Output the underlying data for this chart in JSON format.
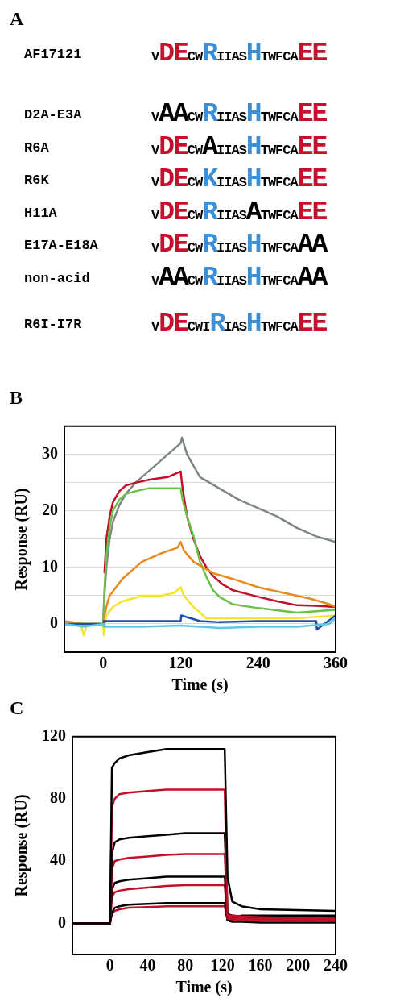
{
  "chart_data": [
    {
      "type": "other",
      "title": "A",
      "annotations": [
        "AF17121",
        "vDEcwRiiasHtwfcaEE",
        "D2A-E3A",
        "vAAcwRiiasHtwfcaEE",
        "R6A",
        "vDEcwAiiasHtwfcaEE",
        "R6K",
        "vDEcwKiiasHtwfcaEE",
        "H11A",
        "vDEcwRiiasAtwfcaEE",
        "E17A-E18A",
        "vDEcwRiiasHtwfcaAA",
        "non-acid",
        "vAAcwRiiasHtwfcaAA",
        "R6I-I7R",
        "vDEcwiRiasHtwfcaEE"
      ]
    },
    {
      "type": "line",
      "title": "B",
      "xlabel": "Time (s)",
      "ylabel": "Response (RU)",
      "xlim": [
        -60,
        360
      ],
      "xticks": [
        0,
        120,
        240,
        360
      ],
      "ylim": [
        -5,
        35
      ],
      "yticks": [
        {
          "value": -5,
          "label": null
        },
        0,
        {
          "value": 5,
          "label": null
        },
        10,
        {
          "value": 15,
          "label": null
        },
        20,
        {
          "value": 25,
          "label": null
        },
        30
      ],
      "grid": "y",
      "series": [
        {
          "color": "#5cc8e8",
          "x": [
            -60,
            -30,
            0,
            1,
            60,
            120,
            180,
            240,
            300,
            350,
            360
          ],
          "values": [
            0,
            -0.5,
            0,
            -0.5,
            -0.5,
            -0.3,
            -0.7,
            -0.5,
            -0.5,
            0,
            1
          ]
        },
        {
          "color": "#1f4fa8",
          "x": [
            -60,
            -30,
            0,
            1,
            30,
            60,
            90,
            120,
            121,
            150,
            180,
            240,
            300,
            330,
            331,
            360
          ],
          "values": [
            0,
            0,
            0,
            0.5,
            0.5,
            0.5,
            0.5,
            0.5,
            1.5,
            0.5,
            0.3,
            0.5,
            0.5,
            0.5,
            -1,
            1.5
          ]
        },
        {
          "color": "#f2e62a",
          "x": [
            -60,
            -35,
            -30,
            -25,
            0,
            1,
            5,
            15,
            30,
            45,
            60,
            90,
            110,
            120,
            125,
            140,
            150,
            160,
            200,
            240,
            300,
            360
          ],
          "values": [
            0,
            0,
            -2,
            0,
            0,
            -2,
            1.5,
            3,
            4,
            4.5,
            5,
            5,
            5.5,
            6.5,
            5,
            3,
            2,
            1,
            1,
            1,
            1,
            1.5
          ]
        },
        {
          "color": "#e88a1e",
          "x": [
            -60,
            -30,
            0,
            5,
            10,
            20,
            30,
            45,
            60,
            90,
            115,
            120,
            125,
            140,
            155,
            170,
            200,
            240,
            280,
            320,
            350,
            360
          ],
          "values": [
            0.5,
            0,
            0,
            3,
            5,
            6.5,
            8,
            9.5,
            11,
            12.5,
            13.5,
            14.5,
            13,
            11,
            10,
            9,
            8,
            6.5,
            5.5,
            4.5,
            3.5,
            3
          ]
        },
        {
          "color": "#6cc04a",
          "x": [
            -60,
            -30,
            0,
            2,
            5,
            10,
            15,
            25,
            35,
            50,
            70,
            100,
            120,
            123,
            130,
            140,
            150,
            160,
            170,
            180,
            200,
            240,
            300,
            360
          ],
          "values": [
            0,
            0,
            0,
            6,
            12,
            17,
            20,
            22,
            23,
            23.5,
            24,
            24,
            24,
            22,
            19,
            15.5,
            11,
            8.3,
            6,
            4.8,
            3.5,
            2.8,
            2,
            2.5
          ]
        },
        {
          "color": "#c0102a",
          "x": [
            2,
            5,
            10,
            15,
            25,
            35,
            50,
            70,
            100,
            120,
            123,
            130,
            140,
            150,
            160,
            170,
            185,
            200,
            240,
            270,
            300,
            330,
            360
          ],
          "values": [
            9,
            15,
            19,
            21.5,
            23.5,
            24.5,
            25,
            25.5,
            26,
            27,
            24,
            19,
            15,
            12,
            10,
            8.5,
            7,
            6,
            4.8,
            4,
            3.3,
            3.2,
            3
          ]
        },
        {
          "color": "#7f8688",
          "x": [
            -60,
            -40,
            -30,
            -20,
            -10,
            0,
            2,
            5,
            10,
            15,
            25,
            35,
            50,
            70,
            90,
            110,
            120,
            122,
            130,
            150,
            180,
            210,
            240,
            270,
            300,
            330,
            360
          ],
          "values": [
            0,
            0,
            0,
            0,
            0,
            0,
            5,
            10,
            15,
            18,
            21,
            23,
            25,
            27,
            29,
            31,
            32,
            33,
            30,
            26,
            24,
            22,
            20.5,
            19,
            17,
            15.5,
            14.5
          ]
        }
      ]
    },
    {
      "type": "line",
      "title": "C",
      "xlabel": "Time (s)",
      "ylabel": "Response (RU)",
      "xlim": [
        -40,
        240
      ],
      "xticks": [
        0,
        40,
        80,
        120,
        160,
        200,
        240
      ],
      "ylim": [
        -20,
        120
      ],
      "yticks": [
        0,
        40,
        80,
        120
      ],
      "x": [
        -40,
        0,
        2,
        5,
        10,
        20,
        40,
        60,
        80,
        100,
        120,
        122,
        125,
        130,
        140,
        160,
        200,
        240
      ],
      "series": [
        {
          "color": "#000000",
          "values": [
            0,
            0,
            100,
            103,
            106,
            108,
            110,
            112,
            112,
            112,
            112,
            112,
            30,
            14,
            11,
            9,
            8.5,
            8
          ]
        },
        {
          "color": "#c0102a",
          "values": [
            0,
            0,
            75,
            80,
            83,
            84,
            85,
            86,
            86,
            86,
            86,
            86,
            5,
            5,
            4.5,
            4,
            3.5,
            3
          ]
        },
        {
          "color": "#000000",
          "values": [
            0,
            0,
            45,
            52,
            54,
            55,
            56,
            57,
            58,
            58,
            58,
            58,
            6,
            5,
            4.5,
            4,
            4,
            4
          ]
        },
        {
          "color": "#c0102a",
          "values": [
            0,
            0,
            35,
            40,
            41,
            42,
            43,
            44,
            44.5,
            44.5,
            44.5,
            44.5,
            4,
            3,
            3,
            3,
            3,
            3
          ]
        },
        {
          "color": "#000000",
          "values": [
            0,
            0,
            22,
            26,
            27,
            28,
            29,
            30,
            30,
            30,
            30,
            30,
            4,
            3,
            5,
            5,
            5,
            5
          ]
        },
        {
          "color": "#c0102a",
          "values": [
            0,
            0,
            17,
            20,
            21,
            22,
            23,
            24,
            24.5,
            24.5,
            24.5,
            24.5,
            3,
            3,
            3,
            3,
            3,
            3
          ]
        },
        {
          "color": "#000000",
          "values": [
            0,
            0,
            7,
            10,
            11,
            12,
            12.5,
            13,
            13,
            13,
            13,
            13,
            2,
            1,
            1,
            0.5,
            0.5,
            0.5
          ]
        },
        {
          "color": "#c0102a",
          "values": [
            0,
            0,
            6,
            8,
            9,
            10,
            10.5,
            11,
            11,
            11,
            11,
            11,
            2,
            2,
            2,
            2,
            2,
            2
          ]
        }
      ]
    }
  ]
}
